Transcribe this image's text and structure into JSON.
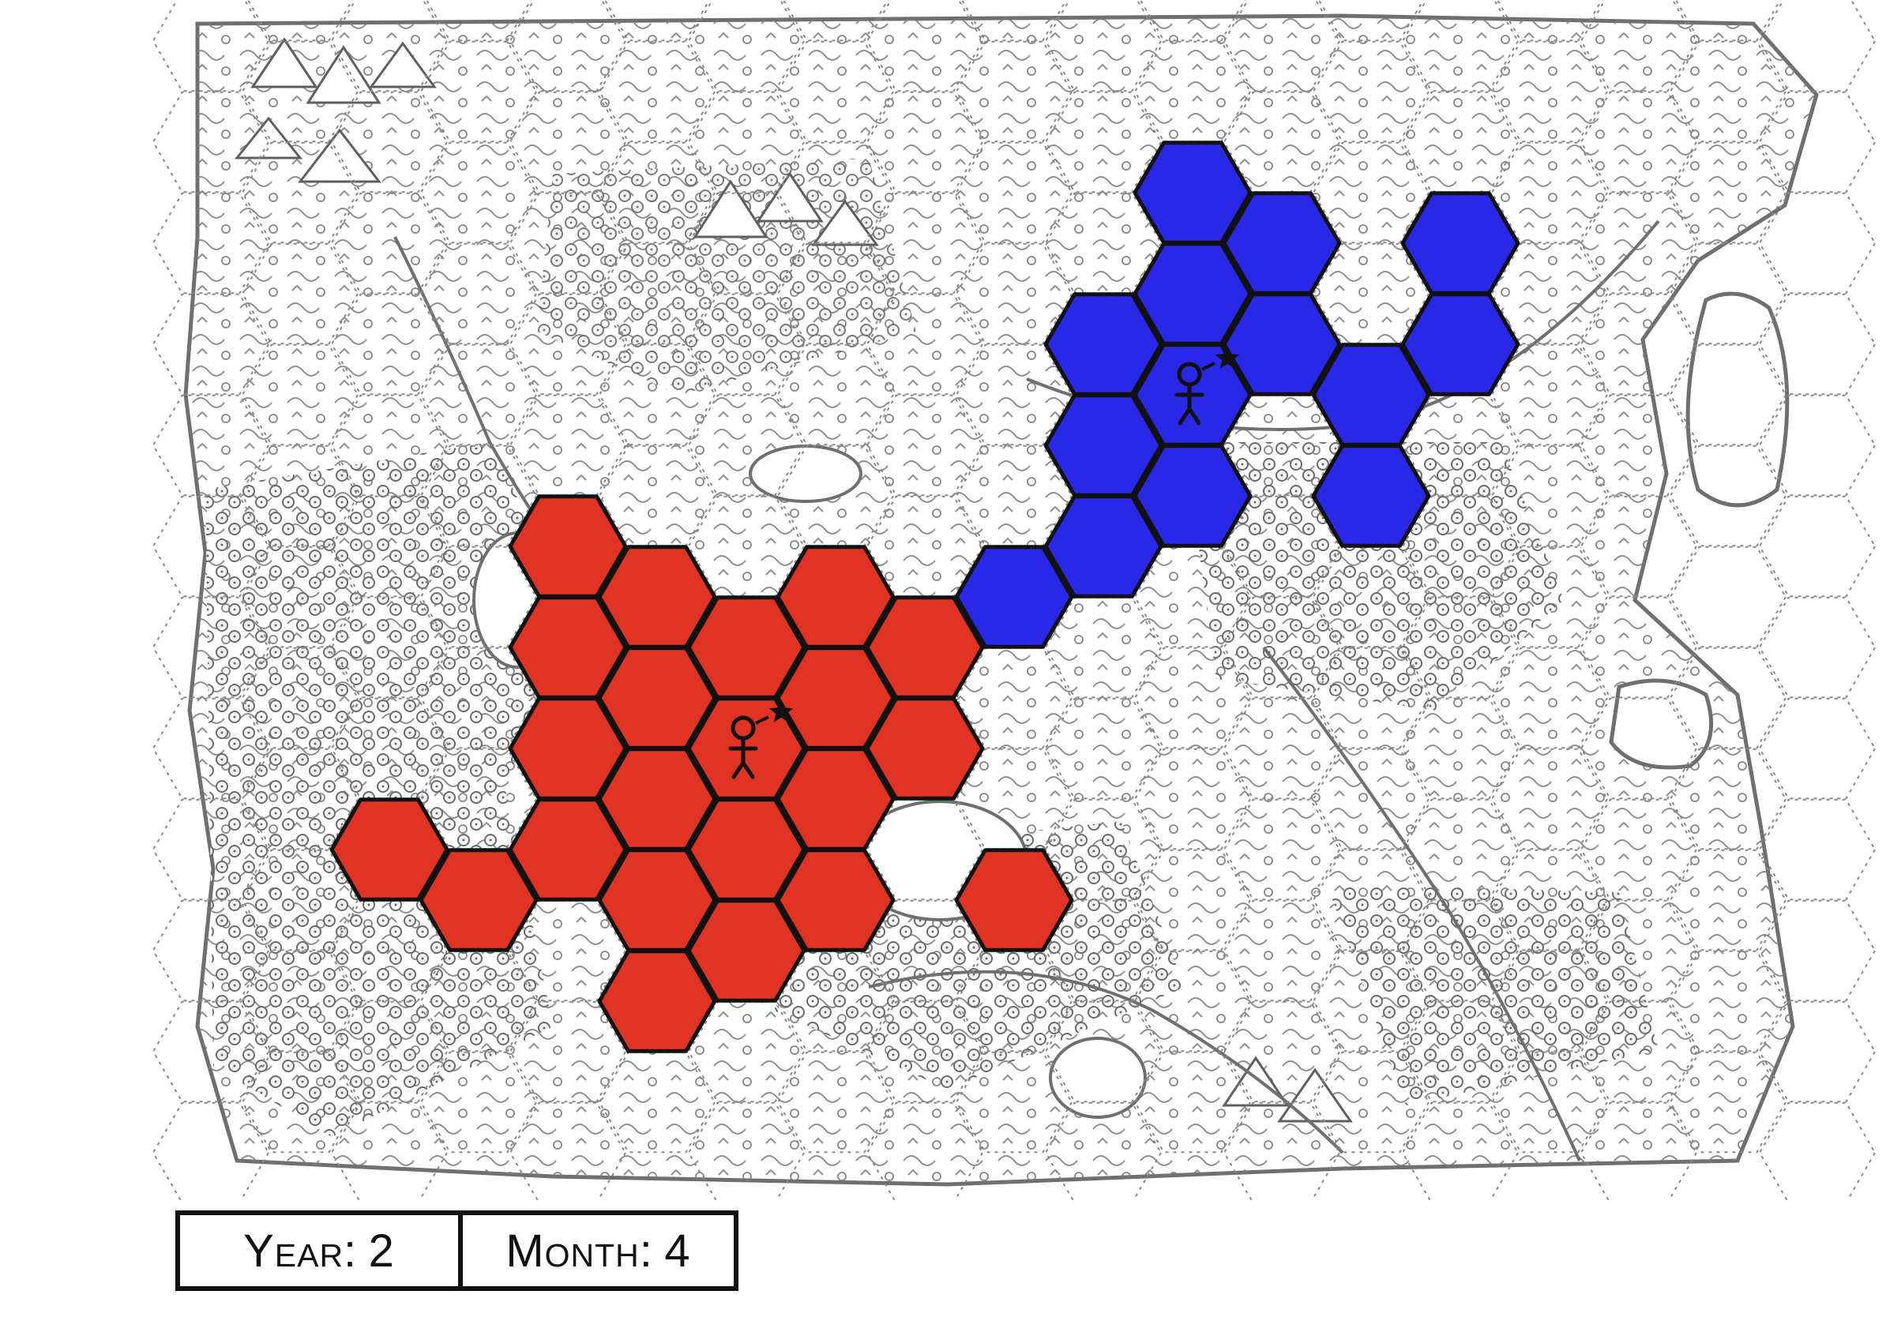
{
  "status": {
    "year_label": "Year:",
    "year_value": "2",
    "month_label": "Month:",
    "month_value": "4"
  },
  "colors": {
    "red_faction": "#e03324",
    "blue_faction": "#2828e6",
    "hex_grid": "#888888",
    "terrain_ink": "#6f6f6f",
    "hex_border": "#111111"
  },
  "factions": [
    {
      "id": "red",
      "color": "#e03324",
      "hexes": [
        [
          4,
          4
        ],
        [
          5,
          4
        ],
        [
          7,
          4
        ],
        [
          4,
          5
        ],
        [
          5,
          5
        ],
        [
          6,
          5
        ],
        [
          7,
          5
        ],
        [
          8,
          5
        ],
        [
          4,
          6
        ],
        [
          5,
          6
        ],
        [
          6,
          6
        ],
        [
          7,
          6
        ],
        [
          8,
          6
        ],
        [
          2,
          7
        ],
        [
          3,
          7
        ],
        [
          4,
          7
        ],
        [
          5,
          7
        ],
        [
          6,
          7
        ],
        [
          7,
          7
        ],
        [
          9,
          7
        ],
        [
          5,
          8
        ],
        [
          6,
          8
        ]
      ],
      "capital": [
        6,
        6
      ]
    },
    {
      "id": "blue",
      "color": "#2828e6",
      "hexes": [
        [
          11,
          0
        ],
        [
          11,
          1
        ],
        [
          12,
          1
        ],
        [
          14,
          1
        ],
        [
          10,
          2
        ],
        [
          11,
          2
        ],
        [
          12,
          2
        ],
        [
          13,
          2
        ],
        [
          14,
          2
        ],
        [
          10,
          3
        ],
        [
          11,
          3
        ],
        [
          13,
          3
        ],
        [
          9,
          4
        ],
        [
          10,
          4
        ]
      ],
      "capital": [
        11,
        2
      ]
    }
  ],
  "icons": [
    "person-icon",
    "star-icon"
  ]
}
